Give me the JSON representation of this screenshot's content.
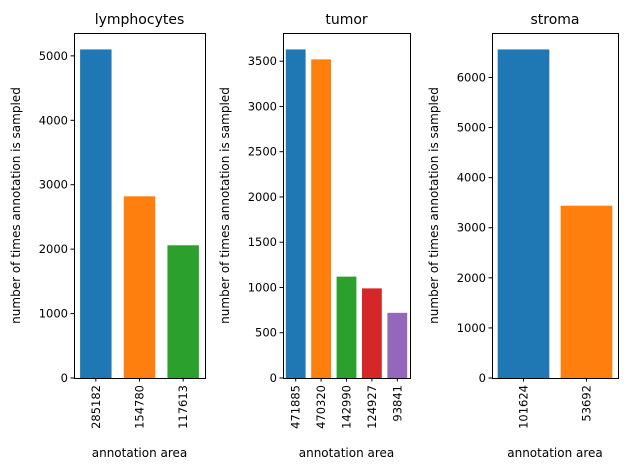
{
  "chart_data": [
    {
      "type": "bar",
      "title": "lymphocytes",
      "xlabel": "annotation area",
      "ylabel": "number of times annotation is sampled",
      "categories": [
        "285182",
        "154780",
        "117613"
      ],
      "values": [
        5100,
        2820,
        2060
      ],
      "colors": [
        "#1f77b4",
        "#ff7f0e",
        "#2ca02c"
      ],
      "ylim": [
        0,
        5355
      ],
      "yticks": [
        0,
        1000,
        2000,
        3000,
        4000,
        5000
      ],
      "grid": false
    },
    {
      "type": "bar",
      "title": "tumor",
      "xlabel": "annotation area",
      "ylabel": "number of times annotation is sampled",
      "categories": [
        "471885",
        "470320",
        "142990",
        "124927",
        "93841"
      ],
      "values": [
        3630,
        3520,
        1120,
        990,
        720
      ],
      "colors": [
        "#1f77b4",
        "#ff7f0e",
        "#2ca02c",
        "#d62728",
        "#9467bd"
      ],
      "ylim": [
        0,
        3811.5
      ],
      "yticks": [
        0,
        500,
        1000,
        1500,
        2000,
        2500,
        3000,
        3500
      ],
      "grid": false
    },
    {
      "type": "bar",
      "title": "stroma",
      "xlabel": "annotation area",
      "ylabel": "number of times annotation is sampled",
      "categories": [
        "101624",
        "53692"
      ],
      "values": [
        6560,
        3440
      ],
      "colors": [
        "#1f77b4",
        "#ff7f0e"
      ],
      "ylim": [
        0,
        6888
      ],
      "yticks": [
        0,
        1000,
        2000,
        3000,
        4000,
        5000,
        6000
      ],
      "grid": false
    }
  ]
}
